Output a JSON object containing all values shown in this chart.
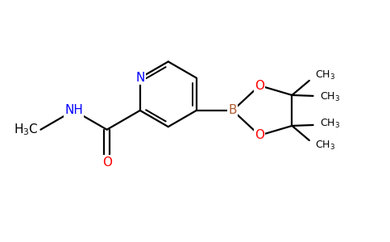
{
  "bg_color": "#ffffff",
  "atom_colors": {
    "N": "#0000ff",
    "O": "#ff0000",
    "B": "#b05a2f",
    "C": "#000000"
  },
  "bond_color": "#000000",
  "bond_width": 1.6,
  "font_size_atoms": 11,
  "font_size_small": 9,
  "figsize": [
    4.84,
    3.0
  ],
  "dpi": 100
}
